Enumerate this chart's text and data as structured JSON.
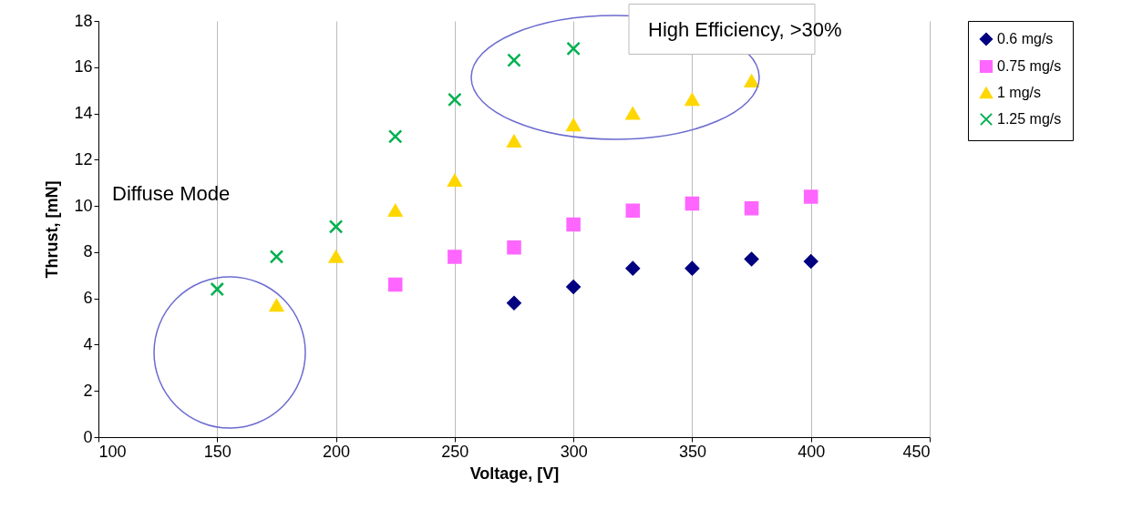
{
  "chart_data": {
    "type": "scatter",
    "xlabel": "Voltage, [V]",
    "ylabel": "Thrust, [mN]",
    "xlim": [
      100,
      450
    ],
    "xticks": [
      100,
      150,
      200,
      250,
      300,
      350,
      400,
      450
    ],
    "ylim": [
      0,
      18
    ],
    "yticks": [
      0,
      2,
      4,
      6,
      8,
      10,
      12,
      14,
      16,
      18
    ],
    "grid": "x",
    "legend": "right",
    "series": [
      {
        "name": "0.6 mg/s",
        "color": "#000080",
        "marker": "diamond",
        "x": [
          275,
          300,
          325,
          350,
          375,
          400
        ],
        "values": [
          5.8,
          6.5,
          7.3,
          7.3,
          7.7,
          7.6
        ]
      },
      {
        "name": "0.75 mg/s",
        "color": "#ff66ff",
        "marker": "square",
        "x": [
          225,
          250,
          275,
          300,
          325,
          350,
          375,
          400
        ],
        "values": [
          6.6,
          7.8,
          8.2,
          9.2,
          9.8,
          10.1,
          9.9,
          10.4
        ]
      },
      {
        "name": "1 mg/s",
        "color": "#ffd700",
        "marker": "triangle",
        "x": [
          175,
          200,
          225,
          250,
          275,
          300,
          325,
          350,
          375
        ],
        "values": [
          5.7,
          7.8,
          9.8,
          11.1,
          12.8,
          13.5,
          14.0,
          14.6,
          15.4
        ]
      },
      {
        "name": "1.25 mg/s",
        "color": "#00b050",
        "marker": "cross",
        "x": [
          150,
          175,
          200,
          225,
          250,
          275,
          300
        ],
        "values": [
          6.4,
          7.8,
          9.1,
          13.0,
          14.6,
          16.3,
          16.8
        ]
      }
    ],
    "annotations": [
      "Diffuse Mode",
      "High Efficiency, >30%"
    ]
  }
}
